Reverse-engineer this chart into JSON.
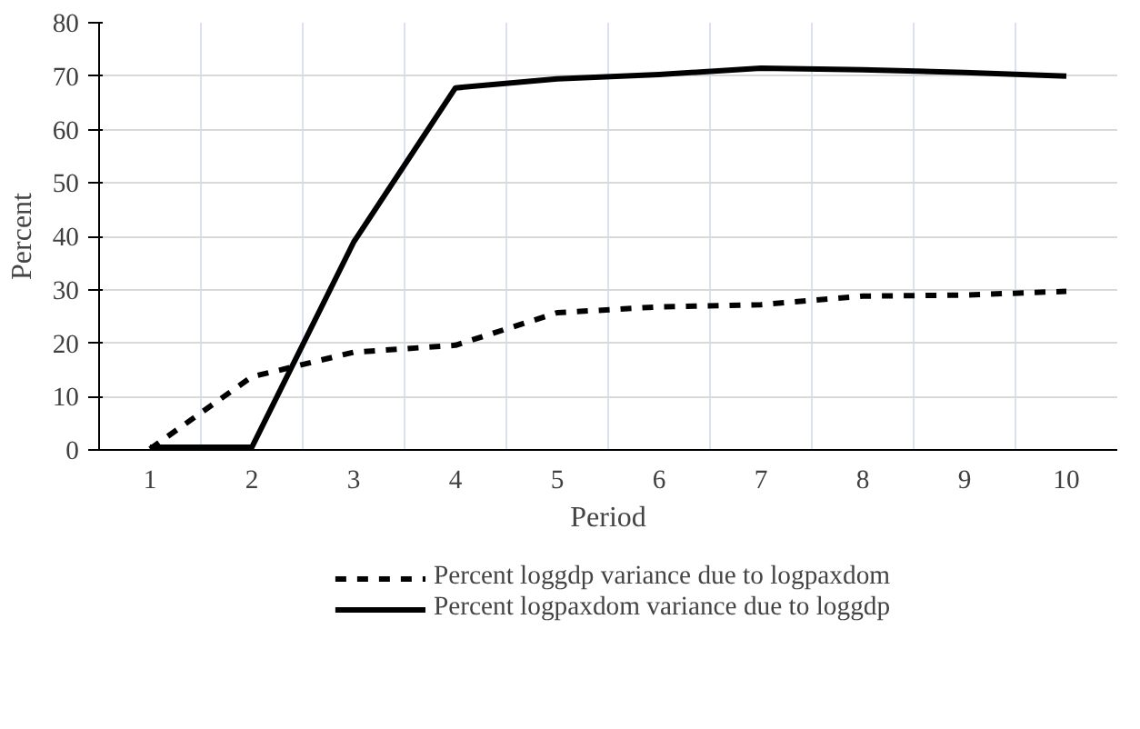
{
  "chart_data": {
    "type": "line",
    "xlabel": "Period",
    "ylabel": "Percent",
    "categories": [
      "1",
      "2",
      "3",
      "4",
      "5",
      "6",
      "7",
      "8",
      "9",
      "10"
    ],
    "series": [
      {
        "name": "Percent loggdp variance due to logpaxdom",
        "color": "#000000",
        "line_style": "dashed",
        "values": [
          0.2,
          13.7,
          18.3,
          19.6,
          25.7,
          26.8,
          27.2,
          28.8,
          29.0,
          29.7
        ]
      },
      {
        "name": "Percent logpaxdom variance due to loggdp",
        "color": "#000000",
        "line_style": "solid",
        "values": [
          0.5,
          0.5,
          38.9,
          67.8,
          69.5,
          70.3,
          71.5,
          71.2,
          70.7,
          70.0
        ]
      }
    ],
    "ylim": [
      0,
      80
    ],
    "yticks": [
      0,
      10,
      20,
      30,
      40,
      50,
      60,
      70,
      80
    ],
    "grid": true,
    "legend": "bottom",
    "marker": "none"
  }
}
